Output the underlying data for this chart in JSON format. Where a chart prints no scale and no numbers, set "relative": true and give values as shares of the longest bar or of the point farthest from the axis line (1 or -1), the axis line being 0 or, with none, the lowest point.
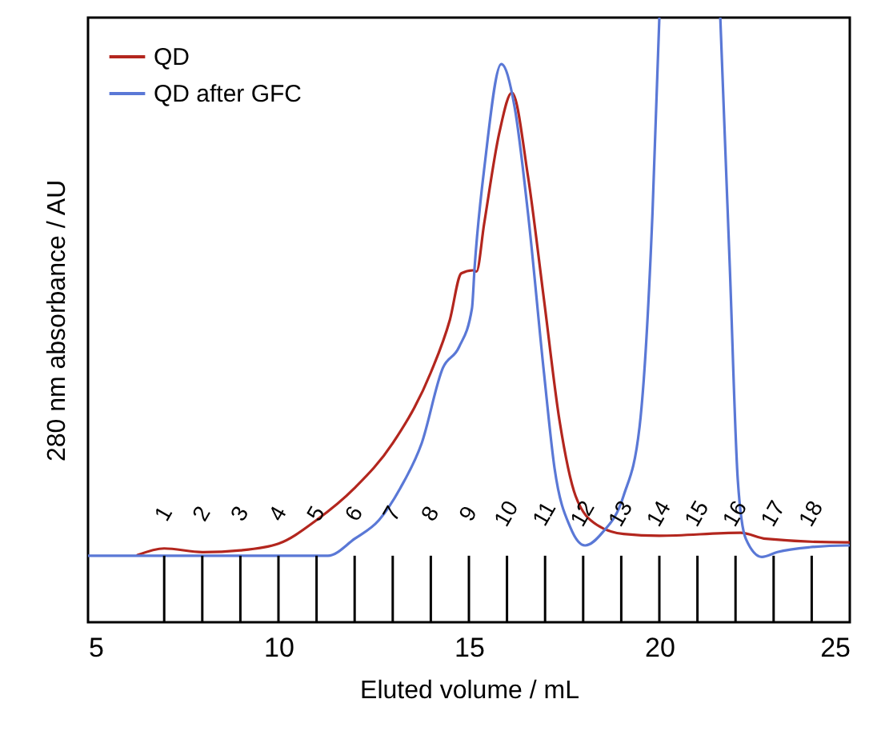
{
  "chart_data": {
    "type": "line",
    "relative": true,
    "xlabel": "Eluted volume / mL",
    "ylabel": "280 nm absorbance / AU",
    "xlim": [
      5,
      25
    ],
    "xticks": [
      5,
      10,
      15,
      20,
      25
    ],
    "legend": "top left",
    "grid": false,
    "tick_labels": "x",
    "line_style": "solid",
    "marker": "none",
    "series": [
      {
        "name": "QD",
        "color": "#b3261e",
        "x": [
          6.3,
          7,
          8,
          9,
          10,
          11,
          12,
          13,
          14,
          14.5,
          14.8,
          15.1,
          15.2,
          15.4,
          15.8,
          16.13,
          16.55,
          16.97,
          17.38,
          17.8,
          18.36,
          19.06,
          20,
          22.13,
          22.8,
          24.9,
          25
        ],
        "values": [
          0.111,
          0.122,
          0.116,
          0.119,
          0.13,
          0.169,
          0.222,
          0.296,
          0.413,
          0.5,
          0.577,
          0.582,
          0.58,
          0.659,
          0.81,
          0.876,
          0.738,
          0.534,
          0.333,
          0.209,
          0.161,
          0.146,
          0.143,
          0.148,
          0.138,
          0.132,
          0.132
        ]
      },
      {
        "name": "QD after GFC",
        "color": "#5a78d6",
        "x": [
          5,
          11.3,
          12,
          12.64,
          13.2,
          13.76,
          14.32,
          14.74,
          15.08,
          15.15,
          15.43,
          15.85,
          16.2,
          16.55,
          16.97,
          17.25,
          17.67,
          18.05,
          18.5,
          19.06,
          19.48,
          19.82,
          20,
          20.8,
          21.6,
          21.85,
          22.06,
          22.27,
          22.69,
          23.1,
          23.94,
          24.9,
          25
        ],
        "values": [
          0.11,
          0.11,
          0.138,
          0.169,
          0.222,
          0.296,
          0.421,
          0.455,
          0.519,
          0.587,
          0.765,
          0.923,
          0.852,
          0.677,
          0.413,
          0.254,
          0.156,
          0.127,
          0.148,
          0.209,
          0.323,
          0.677,
          1,
          null,
          1,
          0.587,
          0.235,
          0.138,
          0.108,
          0.116,
          0.124,
          0.127,
          0.127
        ]
      }
    ],
    "ref_lines": [
      {
        "axis": "x",
        "value": 7
      },
      {
        "axis": "x",
        "value": 8
      },
      {
        "axis": "x",
        "value": 9
      },
      {
        "axis": "x",
        "value": 10
      },
      {
        "axis": "x",
        "value": 11
      },
      {
        "axis": "x",
        "value": 12
      },
      {
        "axis": "x",
        "value": 13
      },
      {
        "axis": "x",
        "value": 14
      },
      {
        "axis": "x",
        "value": 15
      },
      {
        "axis": "x",
        "value": 16
      },
      {
        "axis": "x",
        "value": 17
      },
      {
        "axis": "x",
        "value": 18
      },
      {
        "axis": "x",
        "value": 19
      },
      {
        "axis": "x",
        "value": 20
      },
      {
        "axis": "x",
        "value": 21
      },
      {
        "axis": "x",
        "value": 22
      },
      {
        "axis": "x",
        "value": 23
      },
      {
        "axis": "x",
        "value": 24
      }
    ],
    "annotations": [
      "1",
      "2",
      "3",
      "4",
      "5",
      "6",
      "7",
      "8",
      "9",
      "10",
      "11",
      "12",
      "13",
      "14",
      "15",
      "16",
      "17",
      "18"
    ]
  }
}
